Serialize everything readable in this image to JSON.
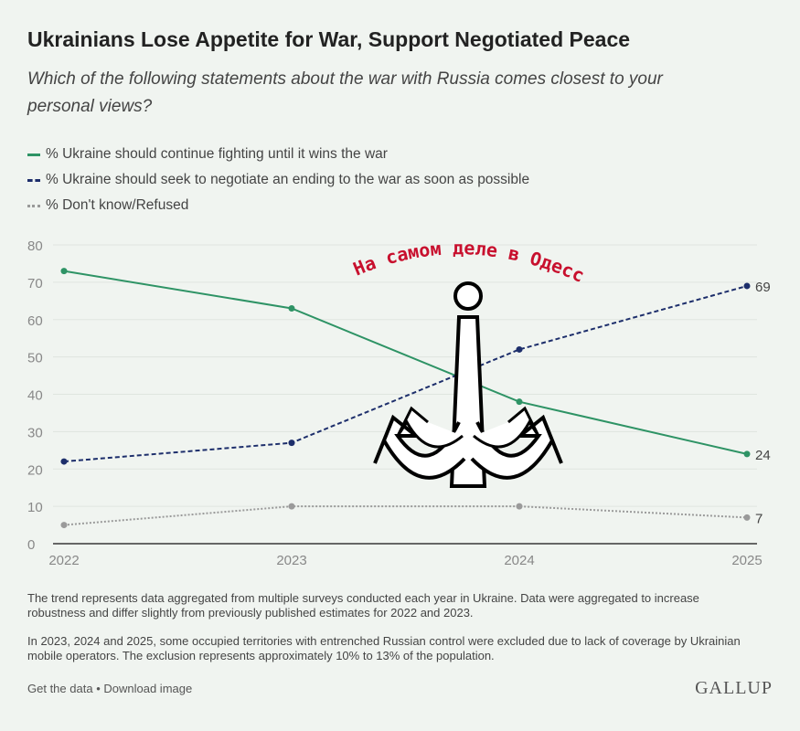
{
  "title": "Ukrainians Lose Appetite for War, Support Negotiated Peace",
  "subtitle": "Which of the following statements about the war with Russia comes closest to your personal views?",
  "watermark_text": "На самом деле в Одессе",
  "notes": [
    "The trend represents data aggregated from multiple surveys conducted each year in Ukraine. Data were aggregated to increase robustness and differ slightly from previously published estimates for 2022 and 2023.",
    "In 2023, 2024 and 2025, some occupied territories with entrenched Russian control were excluded due to lack of coverage by Ukrainian mobile operators. The exclusion represents approximately 10% to 13% of the population."
  ],
  "footer": {
    "get_data": "Get the data",
    "separator": "•",
    "download": "Download image",
    "brand": "GALLUP"
  },
  "chart_data": {
    "type": "line",
    "x": [
      "2022",
      "2023",
      "2024",
      "2025"
    ],
    "ylim": [
      0,
      80
    ],
    "yticks": [
      "0",
      "10",
      "20",
      "30",
      "40",
      "50",
      "60",
      "70",
      "80"
    ],
    "grid": true,
    "legend_position": "top-left",
    "series": [
      {
        "name": "% Ukraine should continue fighting until it wins the war",
        "values": [
          73,
          63,
          38,
          24
        ],
        "color": "#2e9365",
        "style": "solid",
        "end_label": "24"
      },
      {
        "name": "% Ukraine should seek to negotiate an ending to the war as soon as possible",
        "values": [
          22,
          27,
          52,
          69
        ],
        "color": "#1d2e6b",
        "style": "dashed",
        "end_label": "69"
      },
      {
        "name": "% Don't know/Refused",
        "values": [
          5,
          10,
          10,
          7
        ],
        "color": "#9a9a9a",
        "style": "dotted",
        "end_label": "7"
      }
    ]
  }
}
